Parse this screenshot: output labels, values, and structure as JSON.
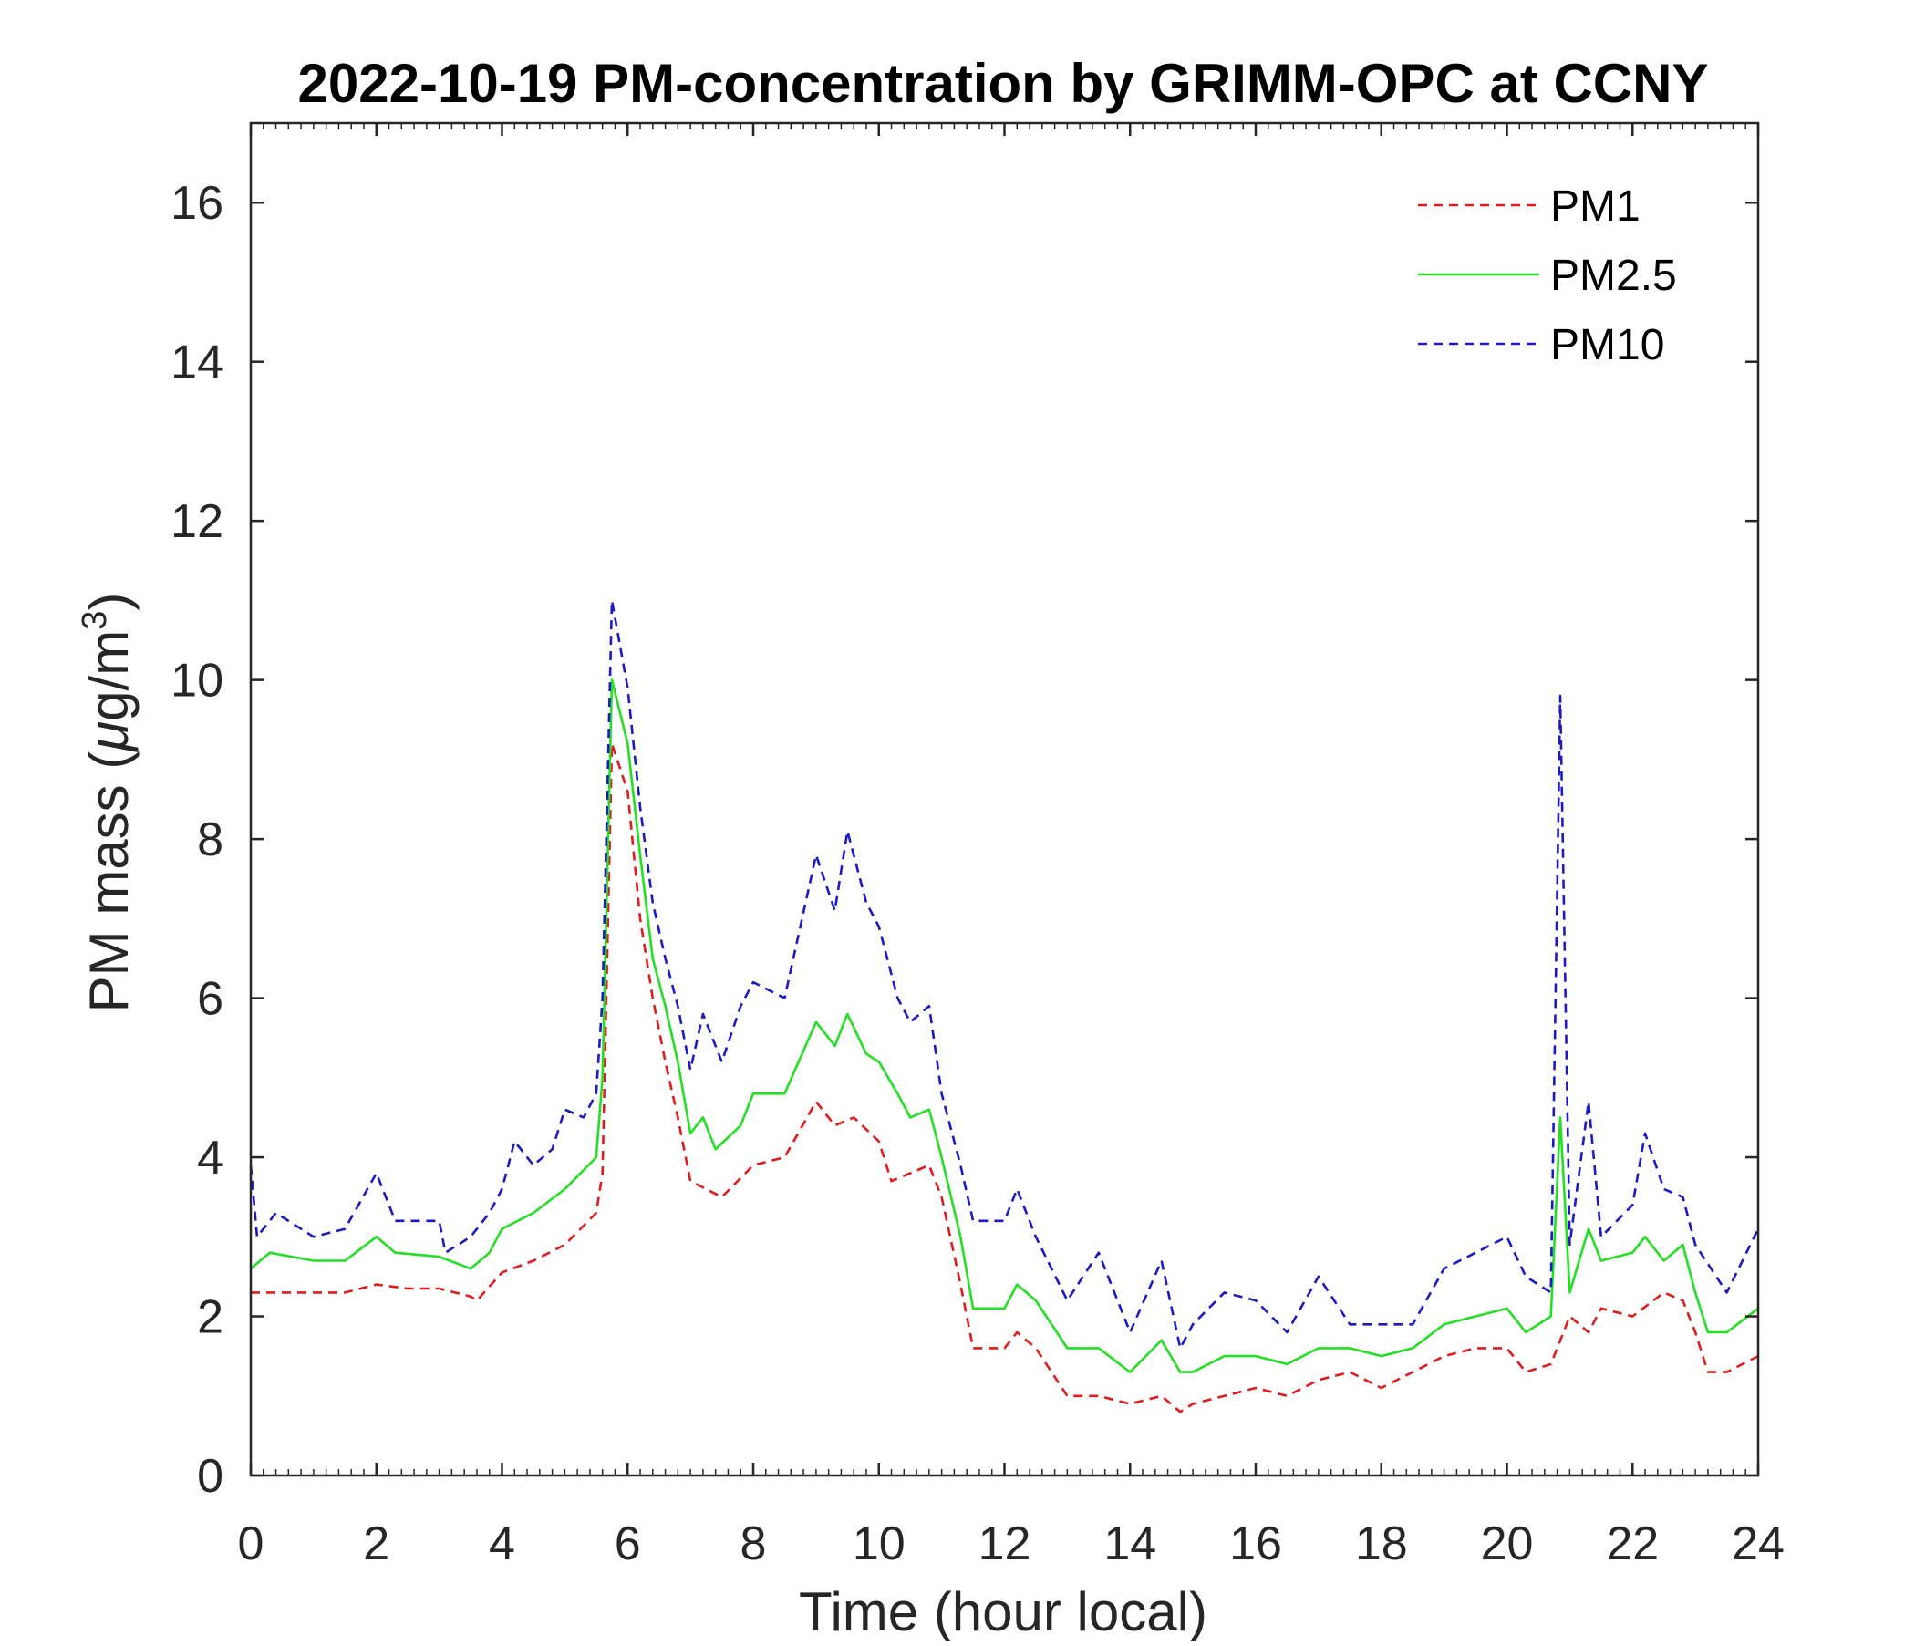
{
  "chart_data": {
    "type": "line",
    "title": "2022-10-19 PM-concentration by GRIMM-OPC at CCNY",
    "xlabel": "Time (hour local)",
    "ylabel": "PM mass (μg/m³)",
    "ylabel_parts": {
      "main": "PM mass (",
      "mu": "μ",
      "unit": "g/m",
      "sup": "3",
      "close": ")"
    },
    "xlim": [
      0,
      24
    ],
    "ylim": [
      0,
      17
    ],
    "x_ticks": [
      0,
      2,
      4,
      6,
      8,
      10,
      12,
      14,
      16,
      18,
      20,
      22,
      24
    ],
    "y_ticks": [
      0,
      2,
      4,
      6,
      8,
      10,
      12,
      14,
      16
    ],
    "x_tick_labels": [
      "0",
      "2",
      "4",
      "6",
      "8",
      "10",
      "12",
      "14",
      "16",
      "18",
      "20",
      "22",
      "24"
    ],
    "y_tick_labels": [
      "0",
      "2",
      "4",
      "6",
      "8",
      "10",
      "12",
      "14",
      "16"
    ],
    "grid": false,
    "legend_position": "top-right",
    "series": [
      {
        "name": "PM1",
        "color": "#e41a1c",
        "style": "dashed",
        "points": [
          [
            0,
            2.3
          ],
          [
            0.3,
            2.3
          ],
          [
            1,
            2.3
          ],
          [
            1.5,
            2.3
          ],
          [
            2,
            2.4
          ],
          [
            2.5,
            2.35
          ],
          [
            3,
            2.35
          ],
          [
            3.5,
            2.25
          ],
          [
            3.6,
            2.2
          ],
          [
            4,
            2.55
          ],
          [
            4.5,
            2.7
          ],
          [
            5,
            2.9
          ],
          [
            5.5,
            3.3
          ],
          [
            5.6,
            3.8
          ],
          [
            5.75,
            9.2
          ],
          [
            6,
            8.6
          ],
          [
            6.2,
            7.0
          ],
          [
            6.4,
            6.0
          ],
          [
            6.6,
            5.2
          ],
          [
            6.8,
            4.5
          ],
          [
            7,
            3.7
          ],
          [
            7.5,
            3.5
          ],
          [
            8,
            3.9
          ],
          [
            8.5,
            4.0
          ],
          [
            9,
            4.7
          ],
          [
            9.3,
            4.4
          ],
          [
            9.6,
            4.5
          ],
          [
            10,
            4.2
          ],
          [
            10.2,
            3.7
          ],
          [
            10.5,
            3.8
          ],
          [
            10.8,
            3.9
          ],
          [
            11,
            3.5
          ],
          [
            11.3,
            2.4
          ],
          [
            11.5,
            1.6
          ],
          [
            12,
            1.6
          ],
          [
            12.2,
            1.8
          ],
          [
            12.5,
            1.6
          ],
          [
            13,
            1.0
          ],
          [
            13.5,
            1.0
          ],
          [
            14,
            0.9
          ],
          [
            14.5,
            1.0
          ],
          [
            14.8,
            0.8
          ],
          [
            15,
            0.9
          ],
          [
            15.5,
            1.0
          ],
          [
            16,
            1.1
          ],
          [
            16.5,
            1.0
          ],
          [
            17,
            1.2
          ],
          [
            17.5,
            1.3
          ],
          [
            18,
            1.1
          ],
          [
            18.5,
            1.3
          ],
          [
            19,
            1.5
          ],
          [
            19.5,
            1.6
          ],
          [
            20,
            1.6
          ],
          [
            20.3,
            1.3
          ],
          [
            20.7,
            1.4
          ],
          [
            21,
            2.0
          ],
          [
            21.3,
            1.8
          ],
          [
            21.5,
            2.1
          ],
          [
            22,
            2.0
          ],
          [
            22.5,
            2.3
          ],
          [
            22.8,
            2.2
          ],
          [
            23,
            1.8
          ],
          [
            23.2,
            1.3
          ],
          [
            23.5,
            1.3
          ],
          [
            24,
            1.5
          ]
        ]
      },
      {
        "name": "PM2.5",
        "color": "#22e022",
        "style": "solid",
        "points": [
          [
            0,
            2.6
          ],
          [
            0.3,
            2.8
          ],
          [
            1,
            2.7
          ],
          [
            1.5,
            2.7
          ],
          [
            2,
            3.0
          ],
          [
            2.3,
            2.8
          ],
          [
            3,
            2.75
          ],
          [
            3.5,
            2.6
          ],
          [
            3.8,
            2.8
          ],
          [
            4,
            3.1
          ],
          [
            4.5,
            3.3
          ],
          [
            5,
            3.6
          ],
          [
            5.5,
            4.0
          ],
          [
            5.6,
            5.0
          ],
          [
            5.75,
            10.0
          ],
          [
            6,
            9.2
          ],
          [
            6.2,
            7.8
          ],
          [
            6.4,
            6.5
          ],
          [
            6.6,
            5.9
          ],
          [
            6.8,
            5.2
          ],
          [
            7,
            4.3
          ],
          [
            7.2,
            4.5
          ],
          [
            7.4,
            4.1
          ],
          [
            7.8,
            4.4
          ],
          [
            8,
            4.8
          ],
          [
            8.5,
            4.8
          ],
          [
            9,
            5.7
          ],
          [
            9.3,
            5.4
          ],
          [
            9.5,
            5.8
          ],
          [
            9.8,
            5.3
          ],
          [
            10,
            5.2
          ],
          [
            10.3,
            4.8
          ],
          [
            10.5,
            4.5
          ],
          [
            10.8,
            4.6
          ],
          [
            11,
            4.0
          ],
          [
            11.3,
            3.0
          ],
          [
            11.5,
            2.1
          ],
          [
            12,
            2.1
          ],
          [
            12.2,
            2.4
          ],
          [
            12.5,
            2.2
          ],
          [
            13,
            1.6
          ],
          [
            13.5,
            1.6
          ],
          [
            14,
            1.3
          ],
          [
            14.5,
            1.7
          ],
          [
            14.8,
            1.3
          ],
          [
            15,
            1.3
          ],
          [
            15.5,
            1.5
          ],
          [
            16,
            1.5
          ],
          [
            16.5,
            1.4
          ],
          [
            17,
            1.6
          ],
          [
            17.5,
            1.6
          ],
          [
            18,
            1.5
          ],
          [
            18.5,
            1.6
          ],
          [
            19,
            1.9
          ],
          [
            19.5,
            2.0
          ],
          [
            20,
            2.1
          ],
          [
            20.3,
            1.8
          ],
          [
            20.7,
            2.0
          ],
          [
            20.85,
            4.5
          ],
          [
            21,
            2.3
          ],
          [
            21.3,
            3.1
          ],
          [
            21.5,
            2.7
          ],
          [
            22,
            2.8
          ],
          [
            22.2,
            3.0
          ],
          [
            22.5,
            2.7
          ],
          [
            22.8,
            2.9
          ],
          [
            23,
            2.3
          ],
          [
            23.2,
            1.8
          ],
          [
            23.5,
            1.8
          ],
          [
            24,
            2.1
          ]
        ]
      },
      {
        "name": "PM10",
        "color": "#1a1ac8",
        "style": "dashed",
        "points": [
          [
            0,
            3.9
          ],
          [
            0.1,
            3.0
          ],
          [
            0.4,
            3.3
          ],
          [
            1,
            3.0
          ],
          [
            1.5,
            3.1
          ],
          [
            2,
            3.8
          ],
          [
            2.3,
            3.2
          ],
          [
            3,
            3.2
          ],
          [
            3.1,
            2.8
          ],
          [
            3.5,
            3.0
          ],
          [
            3.8,
            3.3
          ],
          [
            4,
            3.6
          ],
          [
            4.2,
            4.2
          ],
          [
            4.5,
            3.9
          ],
          [
            4.8,
            4.1
          ],
          [
            5,
            4.6
          ],
          [
            5.3,
            4.5
          ],
          [
            5.5,
            4.8
          ],
          [
            5.6,
            6.0
          ],
          [
            5.75,
            11.0
          ],
          [
            6,
            9.9
          ],
          [
            6.2,
            8.4
          ],
          [
            6.4,
            7.2
          ],
          [
            6.6,
            6.5
          ],
          [
            6.8,
            5.9
          ],
          [
            7,
            5.1
          ],
          [
            7.2,
            5.8
          ],
          [
            7.5,
            5.2
          ],
          [
            7.8,
            5.9
          ],
          [
            8,
            6.2
          ],
          [
            8.5,
            6.0
          ],
          [
            9,
            7.8
          ],
          [
            9.3,
            7.1
          ],
          [
            9.5,
            8.1
          ],
          [
            9.8,
            7.2
          ],
          [
            10,
            6.9
          ],
          [
            10.3,
            6.0
          ],
          [
            10.5,
            5.7
          ],
          [
            10.8,
            5.9
          ],
          [
            11,
            4.8
          ],
          [
            11.3,
            3.9
          ],
          [
            11.5,
            3.2
          ],
          [
            12,
            3.2
          ],
          [
            12.2,
            3.6
          ],
          [
            12.5,
            3.0
          ],
          [
            13,
            2.2
          ],
          [
            13.5,
            2.8
          ],
          [
            14,
            1.8
          ],
          [
            14.5,
            2.7
          ],
          [
            14.8,
            1.6
          ],
          [
            15,
            1.9
          ],
          [
            15.5,
            2.3
          ],
          [
            16,
            2.2
          ],
          [
            16.5,
            1.8
          ],
          [
            17,
            2.5
          ],
          [
            17.5,
            1.9
          ],
          [
            18,
            1.9
          ],
          [
            18.5,
            1.9
          ],
          [
            19,
            2.6
          ],
          [
            19.5,
            2.8
          ],
          [
            20,
            3.0
          ],
          [
            20.3,
            2.5
          ],
          [
            20.7,
            2.3
          ],
          [
            20.85,
            9.8
          ],
          [
            21,
            2.9
          ],
          [
            21.3,
            4.7
          ],
          [
            21.5,
            3.0
          ],
          [
            22,
            3.4
          ],
          [
            22.2,
            4.3
          ],
          [
            22.5,
            3.6
          ],
          [
            22.8,
            3.5
          ],
          [
            23,
            2.9
          ],
          [
            23.5,
            2.3
          ],
          [
            24,
            3.1
          ]
        ]
      }
    ]
  }
}
